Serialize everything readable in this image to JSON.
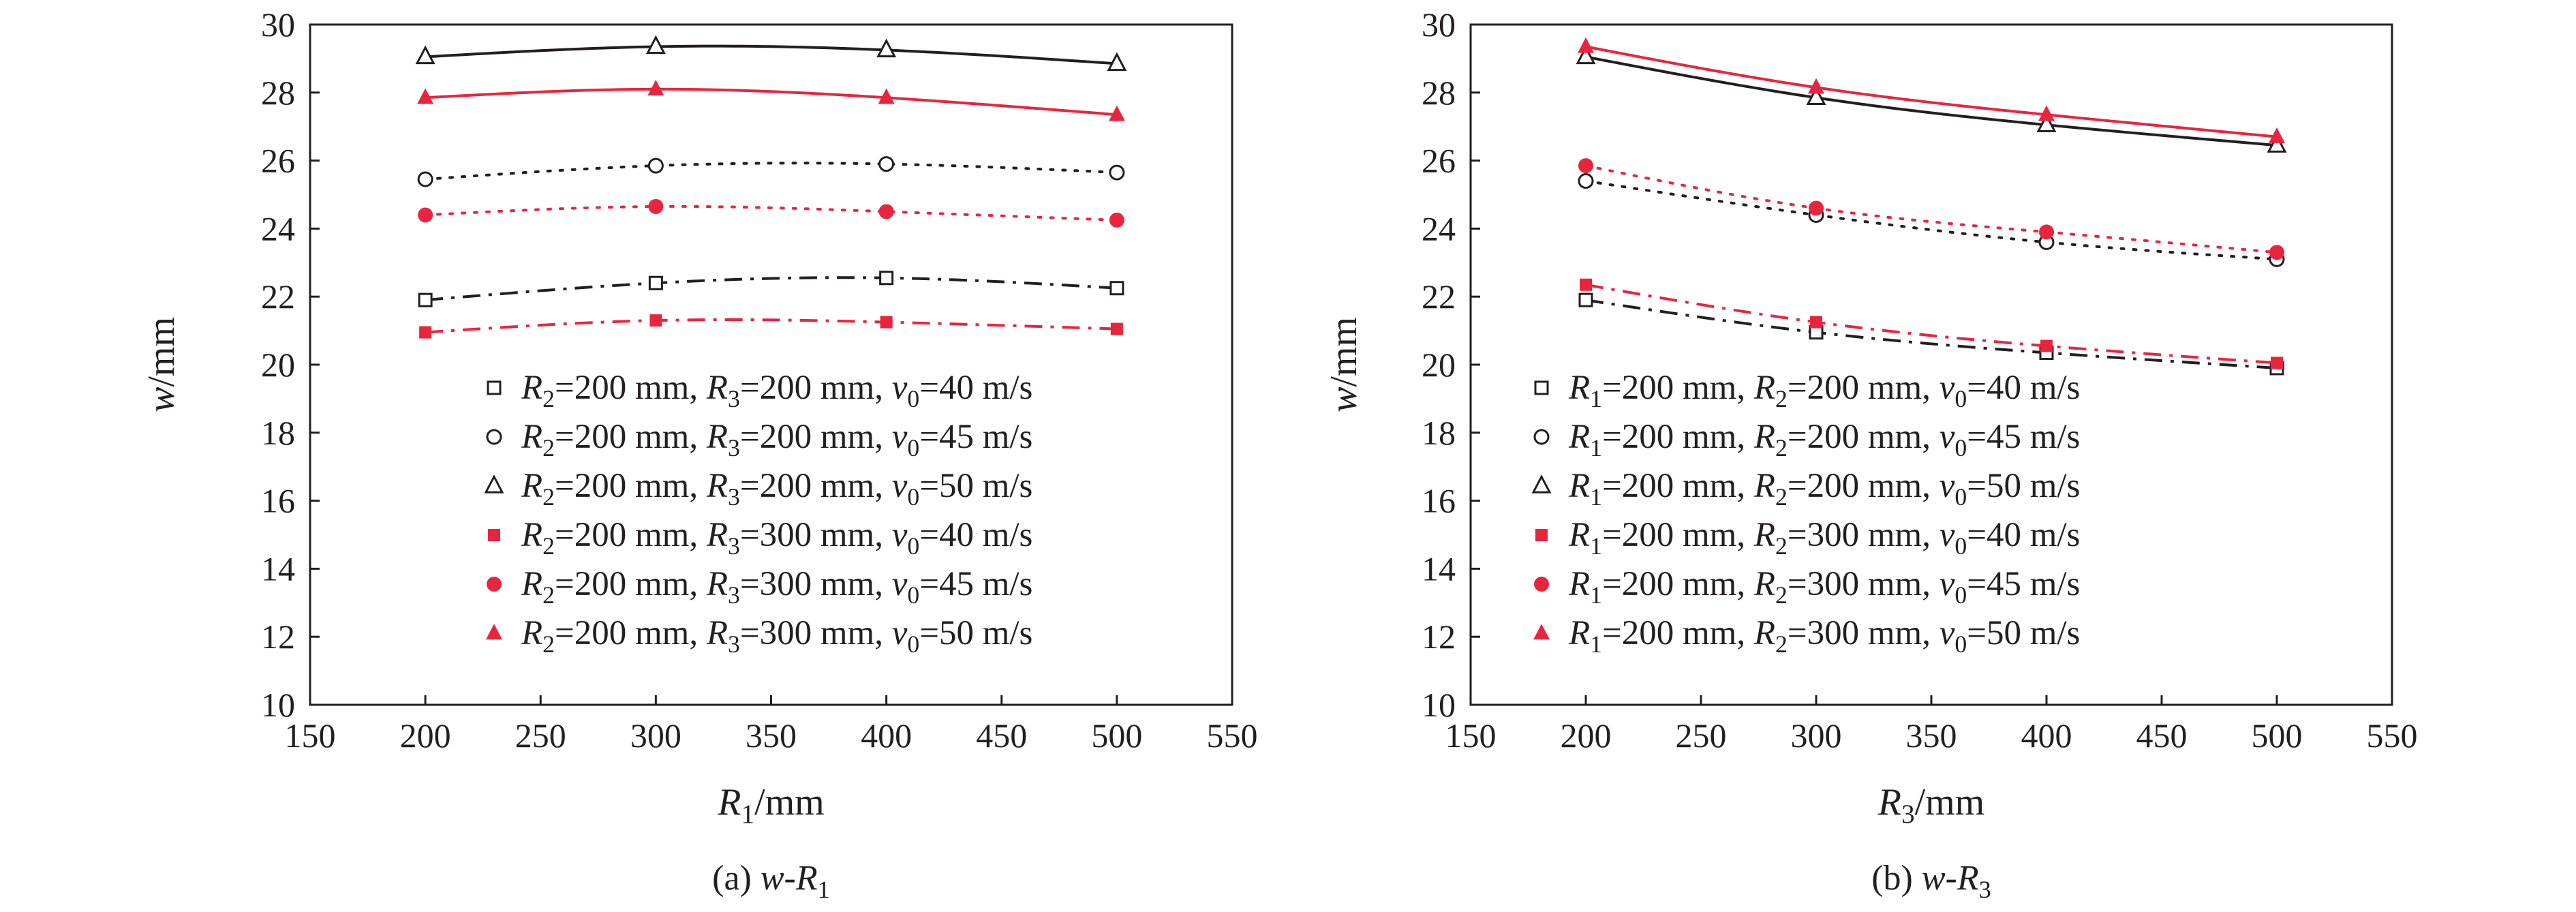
{
  "chart_data": [
    {
      "type": "line",
      "caption": "(a) w-R1",
      "caption_parts": [
        {
          "text": "(a) ",
          "italic": false,
          "sub": false
        },
        {
          "text": "w",
          "italic": true,
          "sub": false
        },
        {
          "text": "-",
          "italic": false,
          "sub": false
        },
        {
          "text": "R",
          "italic": true,
          "sub": false
        },
        {
          "text": "1",
          "italic": false,
          "sub": true
        }
      ],
      "xlabel": "R1/mm",
      "xlabel_parts": [
        {
          "text": "R",
          "italic": true,
          "sub": false
        },
        {
          "text": "1",
          "italic": false,
          "sub": true
        },
        {
          "text": "/mm",
          "italic": false,
          "sub": false
        }
      ],
      "ylabel": "w/mm",
      "ylabel_parts": [
        {
          "text": "w",
          "italic": true,
          "sub": false
        },
        {
          "text": "/mm",
          "italic": false,
          "sub": false
        }
      ],
      "xlim": [
        150,
        550
      ],
      "ylim": [
        10,
        30
      ],
      "xticks": [
        150,
        200,
        250,
        300,
        350,
        400,
        450,
        500,
        550
      ],
      "yticks": [
        10,
        12,
        14,
        16,
        18,
        20,
        22,
        24,
        26,
        28,
        30
      ],
      "grid": false,
      "legend_placement": "lower-right",
      "x": [
        200,
        300,
        400,
        500
      ],
      "series": [
        {
          "name": "R2=200 mm, R3=200 mm, v0=40 m/s",
          "values": [
            21.9,
            22.4,
            22.55,
            22.25
          ],
          "color": "#231f20",
          "marker": "square-open",
          "line": "dashdot"
        },
        {
          "name": "R2=200 mm, R3=200 mm, v0=45 m/s",
          "values": [
            25.45,
            25.85,
            25.9,
            25.65
          ],
          "color": "#231f20",
          "marker": "circle-open",
          "line": "dotted"
        },
        {
          "name": "R2=200 mm, R3=200 mm, v0=50 m/s",
          "values": [
            29.05,
            29.35,
            29.25,
            28.85
          ],
          "color": "#231f20",
          "marker": "triangle-open",
          "line": "solid"
        },
        {
          "name": "R2=200 mm, R3=300 mm, v0=40 m/s",
          "values": [
            20.95,
            21.3,
            21.25,
            21.05
          ],
          "color": "#e8253f",
          "marker": "square-filled",
          "line": "dashdot"
        },
        {
          "name": "R2=200 mm, R3=300 mm, v0=45 m/s",
          "values": [
            24.4,
            24.65,
            24.5,
            24.25
          ],
          "color": "#e8253f",
          "marker": "circle-filled",
          "line": "dotted"
        },
        {
          "name": "R2=200 mm, R3=300 mm, v0=50 m/s",
          "values": [
            27.85,
            28.1,
            27.85,
            27.35
          ],
          "color": "#e8253f",
          "marker": "triangle-filled",
          "line": "solid"
        }
      ],
      "legend": [
        [
          {
            "text": "R",
            "italic": true,
            "sub": false
          },
          {
            "text": "2",
            "italic": false,
            "sub": true
          },
          {
            "text": "=200 mm, ",
            "italic": false,
            "sub": false
          },
          {
            "text": "R",
            "italic": true,
            "sub": false
          },
          {
            "text": "3",
            "italic": false,
            "sub": true
          },
          {
            "text": "=200 mm, ",
            "italic": false,
            "sub": false
          },
          {
            "text": "v",
            "italic": true,
            "sub": false
          },
          {
            "text": "0",
            "italic": false,
            "sub": true
          },
          {
            "text": "=40 m/s",
            "italic": false,
            "sub": false
          }
        ],
        [
          {
            "text": "R",
            "italic": true,
            "sub": false
          },
          {
            "text": "2",
            "italic": false,
            "sub": true
          },
          {
            "text": "=200 mm, ",
            "italic": false,
            "sub": false
          },
          {
            "text": "R",
            "italic": true,
            "sub": false
          },
          {
            "text": "3",
            "italic": false,
            "sub": true
          },
          {
            "text": "=200 mm, ",
            "italic": false,
            "sub": false
          },
          {
            "text": "v",
            "italic": true,
            "sub": false
          },
          {
            "text": "0",
            "italic": false,
            "sub": true
          },
          {
            "text": "=45 m/s",
            "italic": false,
            "sub": false
          }
        ],
        [
          {
            "text": "R",
            "italic": true,
            "sub": false
          },
          {
            "text": "2",
            "italic": false,
            "sub": true
          },
          {
            "text": "=200 mm, ",
            "italic": false,
            "sub": false
          },
          {
            "text": "R",
            "italic": true,
            "sub": false
          },
          {
            "text": "3",
            "italic": false,
            "sub": true
          },
          {
            "text": "=200 mm, ",
            "italic": false,
            "sub": false
          },
          {
            "text": "v",
            "italic": true,
            "sub": false
          },
          {
            "text": "0",
            "italic": false,
            "sub": true
          },
          {
            "text": "=50 m/s",
            "italic": false,
            "sub": false
          }
        ],
        [
          {
            "text": "R",
            "italic": true,
            "sub": false
          },
          {
            "text": "2",
            "italic": false,
            "sub": true
          },
          {
            "text": "=200 mm, ",
            "italic": false,
            "sub": false
          },
          {
            "text": "R",
            "italic": true,
            "sub": false
          },
          {
            "text": "3",
            "italic": false,
            "sub": true
          },
          {
            "text": "=300 mm, ",
            "italic": false,
            "sub": false
          },
          {
            "text": "v",
            "italic": true,
            "sub": false
          },
          {
            "text": "0",
            "italic": false,
            "sub": true
          },
          {
            "text": "=40 m/s",
            "italic": false,
            "sub": false
          }
        ],
        [
          {
            "text": "R",
            "italic": true,
            "sub": false
          },
          {
            "text": "2",
            "italic": false,
            "sub": true
          },
          {
            "text": "=200 mm, ",
            "italic": false,
            "sub": false
          },
          {
            "text": "R",
            "italic": true,
            "sub": false
          },
          {
            "text": "3",
            "italic": false,
            "sub": true
          },
          {
            "text": "=300 mm, ",
            "italic": false,
            "sub": false
          },
          {
            "text": "v",
            "italic": true,
            "sub": false
          },
          {
            "text": "0",
            "italic": false,
            "sub": true
          },
          {
            "text": "=45 m/s",
            "italic": false,
            "sub": false
          }
        ],
        [
          {
            "text": "R",
            "italic": true,
            "sub": false
          },
          {
            "text": "2",
            "italic": false,
            "sub": true
          },
          {
            "text": "=200 mm, ",
            "italic": false,
            "sub": false
          },
          {
            "text": "R",
            "italic": true,
            "sub": false
          },
          {
            "text": "3",
            "italic": false,
            "sub": true
          },
          {
            "text": "=300 mm, ",
            "italic": false,
            "sub": false
          },
          {
            "text": "v",
            "italic": true,
            "sub": false
          },
          {
            "text": "0",
            "italic": false,
            "sub": true
          },
          {
            "text": "=50 m/s",
            "italic": false,
            "sub": false
          }
        ]
      ]
    },
    {
      "type": "line",
      "caption": "(b) w-R3",
      "caption_parts": [
        {
          "text": "(b) ",
          "italic": false,
          "sub": false
        },
        {
          "text": "w",
          "italic": true,
          "sub": false
        },
        {
          "text": "-",
          "italic": false,
          "sub": false
        },
        {
          "text": "R",
          "italic": true,
          "sub": false
        },
        {
          "text": "3",
          "italic": false,
          "sub": true
        }
      ],
      "xlabel": "R3/mm",
      "xlabel_parts": [
        {
          "text": "R",
          "italic": true,
          "sub": false
        },
        {
          "text": "3",
          "italic": false,
          "sub": true
        },
        {
          "text": "/mm",
          "italic": false,
          "sub": false
        }
      ],
      "ylabel": "w/mm",
      "ylabel_parts": [
        {
          "text": "w",
          "italic": true,
          "sub": false
        },
        {
          "text": "/mm",
          "italic": false,
          "sub": false
        }
      ],
      "xlim": [
        150,
        550
      ],
      "ylim": [
        10,
        30
      ],
      "xticks": [
        150,
        200,
        250,
        300,
        350,
        400,
        450,
        500,
        550
      ],
      "yticks": [
        10,
        12,
        14,
        16,
        18,
        20,
        22,
        24,
        26,
        28,
        30
      ],
      "grid": false,
      "legend_placement": "lower-center",
      "x": [
        200,
        300,
        400,
        500
      ],
      "series": [
        {
          "name": "R1=200 mm, R2=200 mm, v0=40 m/s",
          "values": [
            21.9,
            20.95,
            20.35,
            19.9
          ],
          "color": "#231f20",
          "marker": "square-open",
          "line": "dashdot"
        },
        {
          "name": "R1=200 mm, R2=200 mm, v0=45 m/s",
          "values": [
            25.4,
            24.4,
            23.6,
            23.1
          ],
          "color": "#231f20",
          "marker": "circle-open",
          "line": "dotted"
        },
        {
          "name": "R1=200 mm, R2=200 mm, v0=50 m/s",
          "values": [
            29.05,
            27.85,
            27.05,
            26.45
          ],
          "color": "#231f20",
          "marker": "triangle-open",
          "line": "solid"
        },
        {
          "name": "R1=200 mm, R2=300 mm, v0=40 m/s",
          "values": [
            22.35,
            21.25,
            20.55,
            20.05
          ],
          "color": "#e8253f",
          "marker": "square-filled",
          "line": "dashdot"
        },
        {
          "name": "R1=200 mm, R2=300 mm, v0=45 m/s",
          "values": [
            25.85,
            24.6,
            23.9,
            23.3
          ],
          "color": "#e8253f",
          "marker": "circle-filled",
          "line": "dotted"
        },
        {
          "name": "R1=200 mm, R2=300 mm, v0=50 m/s",
          "values": [
            29.35,
            28.15,
            27.35,
            26.7
          ],
          "color": "#e8253f",
          "marker": "triangle-filled",
          "line": "solid"
        }
      ],
      "legend": [
        [
          {
            "text": "R",
            "italic": true,
            "sub": false
          },
          {
            "text": "1",
            "italic": false,
            "sub": true
          },
          {
            "text": "=200 mm, ",
            "italic": false,
            "sub": false
          },
          {
            "text": "R",
            "italic": true,
            "sub": false
          },
          {
            "text": "2",
            "italic": false,
            "sub": true
          },
          {
            "text": "=200 mm, ",
            "italic": false,
            "sub": false
          },
          {
            "text": "v",
            "italic": true,
            "sub": false
          },
          {
            "text": "0",
            "italic": false,
            "sub": true
          },
          {
            "text": "=40 m/s",
            "italic": false,
            "sub": false
          }
        ],
        [
          {
            "text": "R",
            "italic": true,
            "sub": false
          },
          {
            "text": "1",
            "italic": false,
            "sub": true
          },
          {
            "text": "=200 mm, ",
            "italic": false,
            "sub": false
          },
          {
            "text": "R",
            "italic": true,
            "sub": false
          },
          {
            "text": "2",
            "italic": false,
            "sub": true
          },
          {
            "text": "=200 mm, ",
            "italic": false,
            "sub": false
          },
          {
            "text": "v",
            "italic": true,
            "sub": false
          },
          {
            "text": "0",
            "italic": false,
            "sub": true
          },
          {
            "text": "=45 m/s",
            "italic": false,
            "sub": false
          }
        ],
        [
          {
            "text": "R",
            "italic": true,
            "sub": false
          },
          {
            "text": "1",
            "italic": false,
            "sub": true
          },
          {
            "text": "=200 mm, ",
            "italic": false,
            "sub": false
          },
          {
            "text": "R",
            "italic": true,
            "sub": false
          },
          {
            "text": "2",
            "italic": false,
            "sub": true
          },
          {
            "text": "=200 mm, ",
            "italic": false,
            "sub": false
          },
          {
            "text": "v",
            "italic": true,
            "sub": false
          },
          {
            "text": "0",
            "italic": false,
            "sub": true
          },
          {
            "text": "=50 m/s",
            "italic": false,
            "sub": false
          }
        ],
        [
          {
            "text": "R",
            "italic": true,
            "sub": false
          },
          {
            "text": "1",
            "italic": false,
            "sub": true
          },
          {
            "text": "=200 mm, ",
            "italic": false,
            "sub": false
          },
          {
            "text": "R",
            "italic": true,
            "sub": false
          },
          {
            "text": "2",
            "italic": false,
            "sub": true
          },
          {
            "text": "=300 mm, ",
            "italic": false,
            "sub": false
          },
          {
            "text": "v",
            "italic": true,
            "sub": false
          },
          {
            "text": "0",
            "italic": false,
            "sub": true
          },
          {
            "text": "=40 m/s",
            "italic": false,
            "sub": false
          }
        ],
        [
          {
            "text": "R",
            "italic": true,
            "sub": false
          },
          {
            "text": "1",
            "italic": false,
            "sub": true
          },
          {
            "text": "=200 mm, ",
            "italic": false,
            "sub": false
          },
          {
            "text": "R",
            "italic": true,
            "sub": false
          },
          {
            "text": "2",
            "italic": false,
            "sub": true
          },
          {
            "text": "=300 mm, ",
            "italic": false,
            "sub": false
          },
          {
            "text": "v",
            "italic": true,
            "sub": false
          },
          {
            "text": "0",
            "italic": false,
            "sub": true
          },
          {
            "text": "=45 m/s",
            "italic": false,
            "sub": false
          }
        ],
        [
          {
            "text": "R",
            "italic": true,
            "sub": false
          },
          {
            "text": "1",
            "italic": false,
            "sub": true
          },
          {
            "text": "=200 mm, ",
            "italic": false,
            "sub": false
          },
          {
            "text": "R",
            "italic": true,
            "sub": false
          },
          {
            "text": "2",
            "italic": false,
            "sub": true
          },
          {
            "text": "=300 mm, ",
            "italic": false,
            "sub": false
          },
          {
            "text": "v",
            "italic": true,
            "sub": false
          },
          {
            "text": "0",
            "italic": false,
            "sub": true
          },
          {
            "text": "=50 m/s",
            "italic": false,
            "sub": false
          }
        ]
      ]
    }
  ]
}
